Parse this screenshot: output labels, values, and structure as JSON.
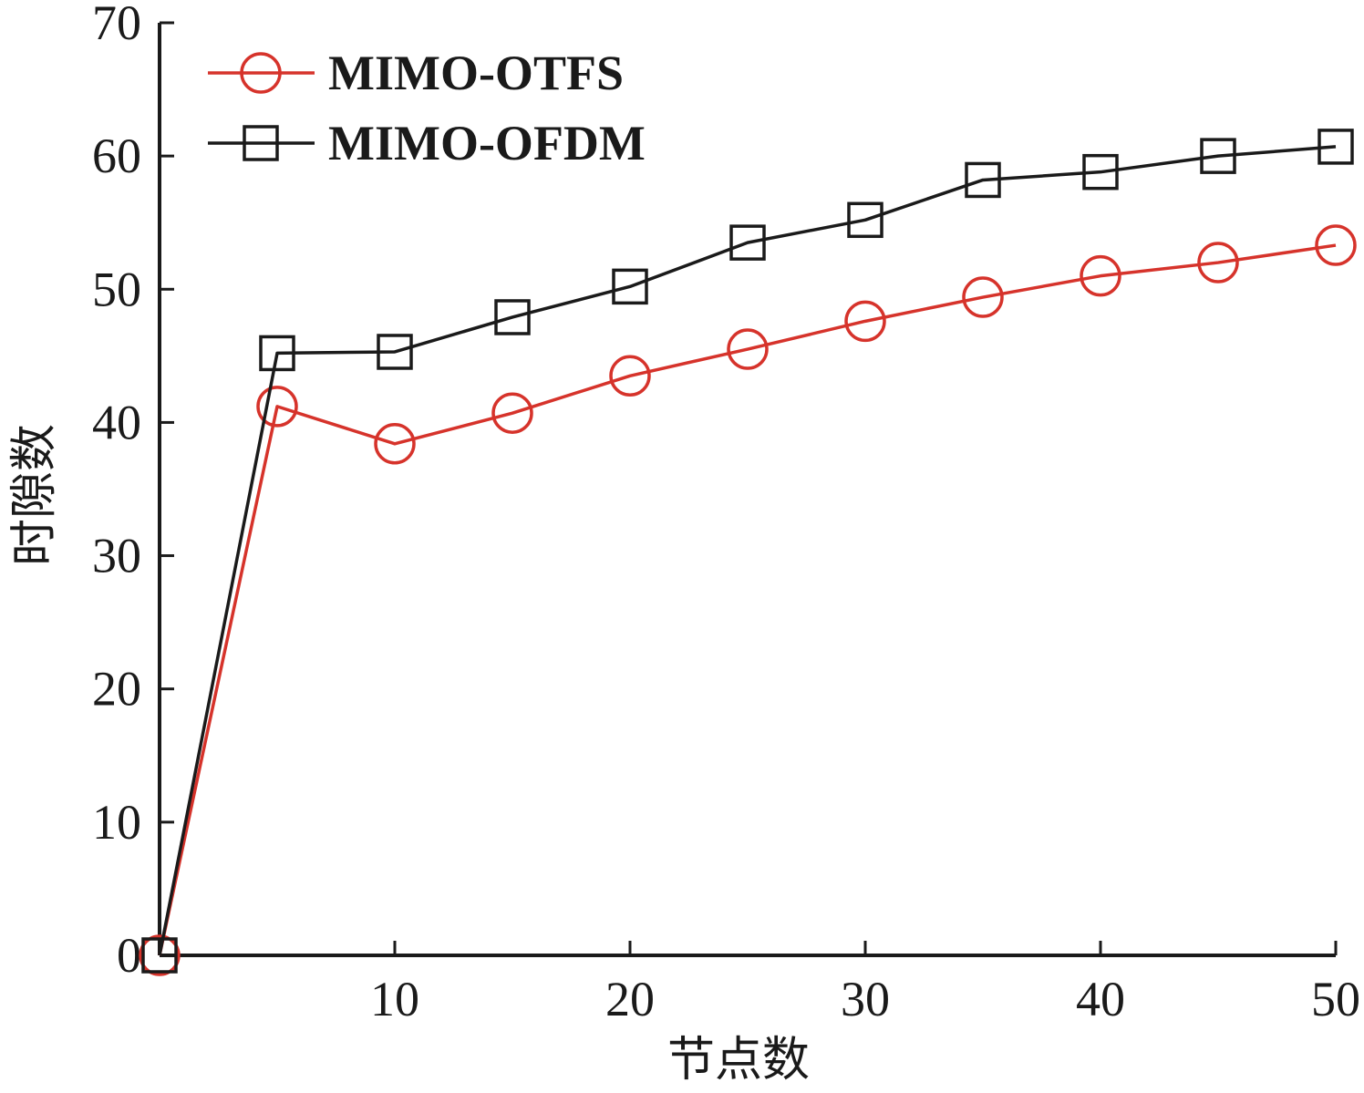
{
  "chart_data": {
    "type": "line",
    "xlabel": "节点数",
    "ylabel": "时隙数",
    "xlim": [
      0,
      50
    ],
    "ylim": [
      0,
      70
    ],
    "x_ticks": [
      10,
      20,
      30,
      40,
      50
    ],
    "y_ticks": [
      0,
      10,
      20,
      30,
      40,
      50,
      60,
      70
    ],
    "x_tick_labels": [
      "10",
      "20",
      "30",
      "40",
      "50"
    ],
    "y_tick_labels": [
      "0",
      "10",
      "20",
      "30",
      "40",
      "50",
      "60",
      "70"
    ],
    "grid": false,
    "legend_position": "top-left",
    "series": [
      {
        "name": "MIMO-OTFS",
        "color": "#d6332b",
        "marker": "circle",
        "x": [
          0,
          5,
          10,
          15,
          20,
          25,
          30,
          35,
          40,
          45,
          50
        ],
        "y": [
          0,
          41.2,
          38.4,
          40.7,
          43.5,
          45.5,
          47.6,
          49.4,
          51.0,
          52.0,
          53.3
        ]
      },
      {
        "name": "MIMO-OFDM",
        "color": "#1a1a1a",
        "marker": "square",
        "x": [
          0,
          5,
          10,
          15,
          20,
          25,
          30,
          35,
          40,
          45,
          50
        ],
        "y": [
          0,
          45.2,
          45.3,
          47.9,
          50.2,
          53.5,
          55.2,
          58.2,
          58.8,
          60.0,
          60.7
        ]
      }
    ]
  }
}
